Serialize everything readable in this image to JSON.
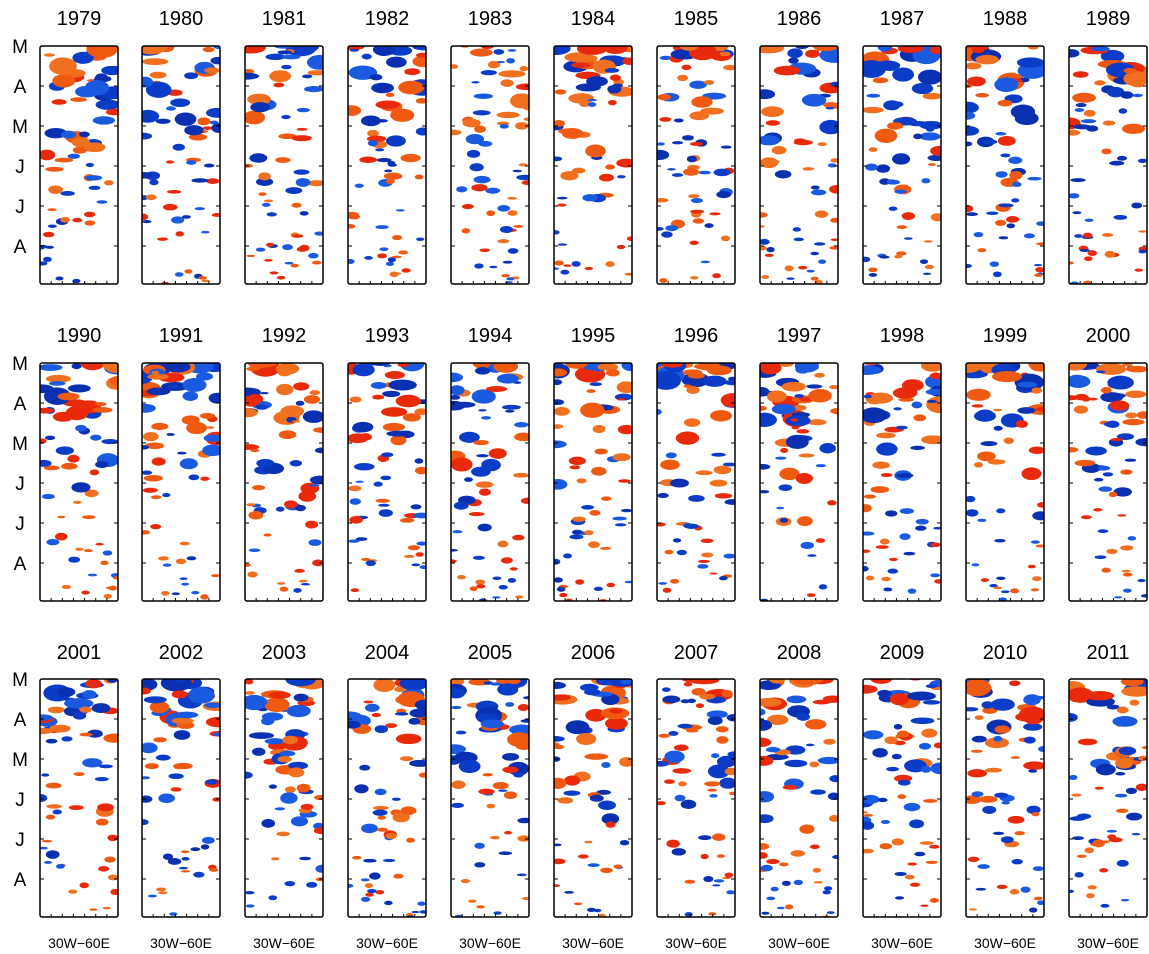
{
  "rows": [
    {
      "years": [
        "1979",
        "1980",
        "1981",
        "1982",
        "1983",
        "1984",
        "1985",
        "1986",
        "1987",
        "1988",
        "1989"
      ],
      "month_labels": [
        "M",
        "A",
        "M",
        "J",
        "J",
        "A"
      ]
    },
    {
      "years": [
        "1990",
        "1991",
        "1992",
        "1993",
        "1994",
        "1995",
        "1996",
        "1997",
        "1998",
        "1999",
        "2000"
      ],
      "month_labels": [
        "M",
        "A",
        "M",
        "J",
        "J",
        "A"
      ]
    },
    {
      "years": [
        "2001",
        "2002",
        "2003",
        "2004",
        "2005",
        "2006",
        "2007",
        "2008",
        "2009",
        "2010",
        "2011"
      ],
      "month_labels": [
        "M",
        "A",
        "M",
        "J",
        "J",
        "A"
      ]
    }
  ],
  "x_labels": [
    "30W−60E",
    "30W−60E",
    "30W−60E",
    "30W−60E",
    "30W−60E",
    "30W−60E",
    "30W−60E",
    "30W−60E",
    "30W−60E",
    "30W−60E",
    "30W−60E"
  ]
}
